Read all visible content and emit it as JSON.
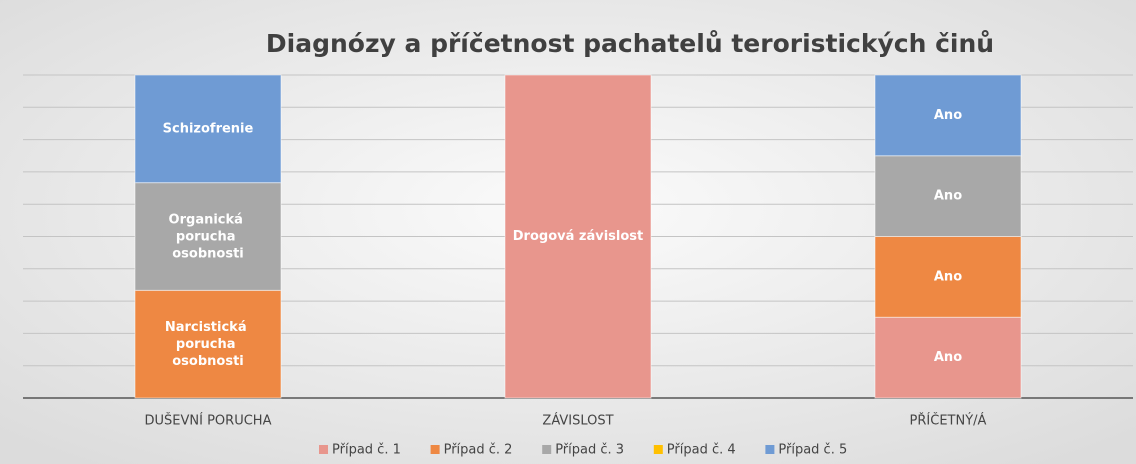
{
  "chart_data": {
    "type": "bar",
    "stacked": "percent",
    "title": "Diagnózy a příčetnost pachatelů teroristických činů",
    "categories": [
      "DUŠEVNÍ PORUCHA",
      "ZÁVISLOST",
      "PŘÍČETNÝ/Á"
    ],
    "series": [
      {
        "name": "Případ č. 1",
        "color": "#e8968d",
        "values": [
          null,
          1,
          1
        ],
        "labels": [
          null,
          "Drogová závislost",
          "Ano"
        ]
      },
      {
        "name": "Případ č. 2",
        "color": "#ee8843",
        "values": [
          1,
          null,
          1
        ],
        "labels": [
          "Narcistická porucha osobnosti",
          null,
          "Ano"
        ]
      },
      {
        "name": "Případ č. 3",
        "color": "#a8a8a8",
        "values": [
          1,
          null,
          1
        ],
        "labels": [
          "Organická porucha osobnosti",
          null,
          "Ano"
        ]
      },
      {
        "name": "Případ č. 4",
        "color": "#ffc000",
        "values": [
          null,
          null,
          null
        ],
        "labels": [
          null,
          null,
          null
        ]
      },
      {
        "name": "Případ č. 5",
        "color": "#6f9bd4",
        "values": [
          1,
          null,
          1
        ],
        "labels": [
          "Schizofrenie",
          null,
          "Ano"
        ]
      }
    ],
    "ylim": [
      0,
      100
    ],
    "yticks": [
      0,
      10,
      20,
      30,
      40,
      50,
      60,
      70,
      80,
      90,
      100
    ],
    "grid": true,
    "legend": "bottom"
  }
}
